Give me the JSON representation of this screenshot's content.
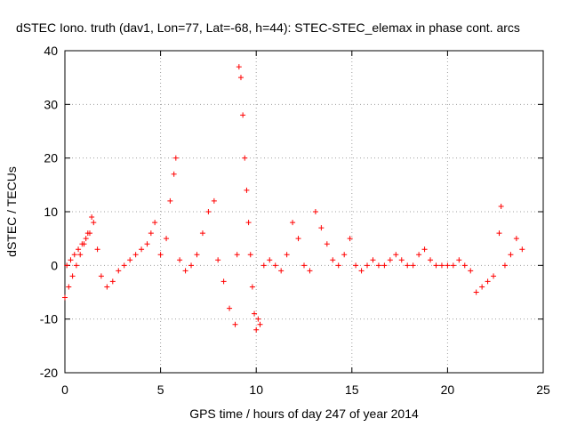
{
  "chart_data": {
    "type": "scatter",
    "title": "dSTEC Iono. truth (dav1, Lon=77, Lat=-68, h=44): STEC-STEC_elemax in phase cont. arcs",
    "xlabel": "GPS time / hours of day 247 of year 2014",
    "ylabel": "dSTEC  / TECUs",
    "xlim": [
      0,
      25
    ],
    "ylim": [
      -20,
      40
    ],
    "xticks": [
      0,
      5,
      10,
      15,
      20,
      25
    ],
    "yticks": [
      -20,
      -10,
      0,
      10,
      20,
      30,
      40
    ],
    "grid": true,
    "marker": "plus",
    "colors": {
      "series": "#ff0000",
      "grid": "#a0a0a0"
    },
    "series": [
      {
        "x": [
          0.0,
          0.2,
          0.4,
          0.6,
          0.8,
          1.0,
          1.2,
          1.4,
          0.1,
          0.3,
          0.5,
          0.7,
          0.9,
          1.1,
          1.3,
          1.5,
          1.7,
          1.9,
          2.2,
          2.5,
          2.8,
          3.1,
          3.4,
          3.7,
          4.0,
          4.3,
          4.5,
          4.7,
          5.0,
          5.3,
          5.5,
          5.7,
          5.8,
          6.0,
          6.3,
          6.6,
          6.9,
          7.2,
          7.5,
          7.8,
          8.0,
          8.3,
          8.6,
          8.9,
          9.0,
          9.1,
          9.2,
          9.3,
          9.4,
          9.5,
          9.6,
          9.7,
          9.8,
          9.9,
          10.0,
          10.1,
          10.2,
          10.4,
          10.7,
          11.0,
          11.3,
          11.6,
          11.9,
          12.2,
          12.5,
          12.8,
          13.1,
          13.4,
          13.7,
          14.0,
          14.3,
          14.6,
          14.9,
          15.2,
          15.5,
          15.8,
          16.1,
          16.4,
          16.7,
          17.0,
          17.3,
          17.6,
          17.9,
          18.2,
          18.5,
          18.8,
          19.1,
          19.4,
          19.7,
          20.0,
          20.3,
          20.6,
          20.9,
          21.2,
          21.5,
          21.8,
          22.1,
          22.4,
          22.7,
          22.8,
          23.0,
          23.3,
          23.6,
          23.9
        ],
        "y": [
          -6,
          -4,
          -2,
          0,
          2,
          4,
          6,
          9,
          0,
          1,
          2,
          3,
          4,
          5,
          6,
          8,
          3,
          -2,
          -4,
          -3,
          -1,
          0,
          1,
          2,
          3,
          4,
          6,
          8,
          2,
          5,
          12,
          17,
          20,
          1,
          -1,
          0,
          2,
          6,
          10,
          12,
          1,
          -3,
          -8,
          -11,
          2,
          37,
          35,
          28,
          20,
          14,
          8,
          2,
          -4,
          -9,
          -12,
          -10,
          -11,
          0,
          1,
          0,
          -1,
          2,
          8,
          5,
          0,
          -1,
          10,
          7,
          4,
          1,
          0,
          2,
          5,
          0,
          -1,
          0,
          1,
          0,
          0,
          1,
          2,
          1,
          0,
          0,
          2,
          3,
          1,
          0,
          0,
          0,
          0,
          1,
          0,
          -1,
          -5,
          -4,
          -3,
          -2,
          6,
          11,
          0,
          2,
          5,
          3
        ]
      }
    ]
  }
}
